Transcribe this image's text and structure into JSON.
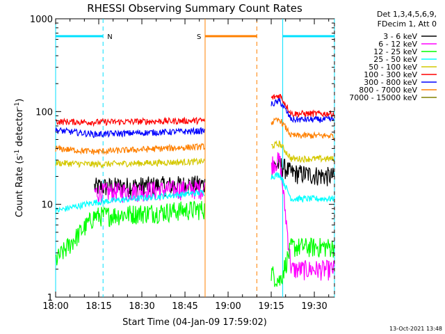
{
  "chart_data": {
    "type": "line",
    "title": "RHESSI Observing Summary Count Rates",
    "xlabel": "Start Time (04-Jan-09 17:59:02)",
    "ylabel_main": "Count Rate (s",
    "ylabel_sup1": "-1",
    "ylabel_mid": " detector",
    "ylabel_sup2": "-1",
    "ylabel_end": ")",
    "y_scale": "log",
    "ylim": [
      1,
      1000
    ],
    "xlim_minutes": [
      0,
      97
    ],
    "x_ticks": [
      {
        "label": "18:00",
        "value": 0
      },
      {
        "label": "18:15",
        "value": 15
      },
      {
        "label": "18:30",
        "value": 30
      },
      {
        "label": "18:45",
        "value": 45
      },
      {
        "label": "19:00",
        "value": 60
      },
      {
        "label": "19:15",
        "value": 75
      },
      {
        "label": "19:30",
        "value": 90
      }
    ],
    "y_ticks": [
      {
        "label": "1",
        "value": 1
      },
      {
        "label": "10",
        "value": 10
      },
      {
        "label": "100",
        "value": 100
      },
      {
        "label": "1000",
        "value": 1000
      }
    ],
    "legend_header": [
      "Det 1,3,4,5,6,9,",
      "FDecim 1, Att 0"
    ],
    "legend_placement": "right",
    "flags": [
      {
        "label": "N",
        "color": "#00e0ff",
        "level": 650,
        "segments": [
          [
            0,
            16.5
          ],
          [
            79,
            97
          ]
        ],
        "dashed_x": [
          16.5,
          97
        ],
        "solid_x": [
          0,
          79
        ]
      },
      {
        "label": "S",
        "color": "#ff8000",
        "level": 650,
        "segments": [
          [
            52,
            70
          ]
        ],
        "dashed_x": [
          70
        ],
        "solid_x": [
          52
        ]
      }
    ],
    "series": [
      {
        "name": "3 - 6 keV",
        "color": "#000000",
        "values": [
          [
            13.5,
            15.5
          ],
          [
            52,
            16.5
          ],
          [
            78,
            27
          ],
          [
            82,
            22
          ],
          [
            97,
            20
          ]
        ]
      },
      {
        "name": "6 - 12 keV",
        "color": "#ff00ff",
        "values": [
          [
            13.5,
            13.5
          ],
          [
            52,
            15
          ],
          [
            78,
            30
          ],
          [
            82,
            2
          ],
          [
            97,
            2
          ]
        ]
      },
      {
        "name": "12 - 25 keV",
        "color": "#00ff00",
        "values": [
          [
            0,
            2.5
          ],
          [
            13.5,
            7.5
          ],
          [
            52,
            9
          ],
          [
            78,
            1.5
          ],
          [
            82,
            3.5
          ],
          [
            97,
            3.5
          ]
        ]
      },
      {
        "name": "25 - 50 keV",
        "color": "#00ffff",
        "values": [
          [
            0,
            8.5
          ],
          [
            13.5,
            10.5
          ],
          [
            52,
            13.5
          ],
          [
            78,
            21
          ],
          [
            82,
            11.5
          ],
          [
            97,
            11.5
          ]
        ]
      },
      {
        "name": "50 - 100 keV",
        "color": "#d4c800",
        "values": [
          [
            0,
            28
          ],
          [
            13.5,
            27
          ],
          [
            52,
            29
          ],
          [
            78,
            45
          ],
          [
            82,
            31
          ],
          [
            97,
            31
          ]
        ]
      },
      {
        "name": "100 - 300 keV",
        "color": "#ff0000",
        "values": [
          [
            0,
            78
          ],
          [
            13.5,
            77
          ],
          [
            52,
            80
          ],
          [
            78,
            150
          ],
          [
            82,
            95
          ],
          [
            97,
            95
          ]
        ]
      },
      {
        "name": "300 - 800 keV",
        "color": "#0000ff",
        "values": [
          [
            0,
            63
          ],
          [
            13.5,
            57
          ],
          [
            52,
            62
          ],
          [
            78,
            130
          ],
          [
            82,
            82
          ],
          [
            97,
            82
          ]
        ]
      },
      {
        "name": "800 - 7000 keV",
        "color": "#ff8000",
        "values": [
          [
            0,
            40
          ],
          [
            13.5,
            37
          ],
          [
            52,
            42
          ],
          [
            78,
            82
          ],
          [
            82,
            55
          ],
          [
            97,
            55
          ]
        ]
      },
      {
        "name": "7000 - 15000 keV",
        "color": "#808000",
        "values": []
      }
    ],
    "gaps_minutes": [
      [
        52,
        75
      ]
    ],
    "grid": false
  },
  "footer_timestamp": "13-Oct-2021 13:48"
}
